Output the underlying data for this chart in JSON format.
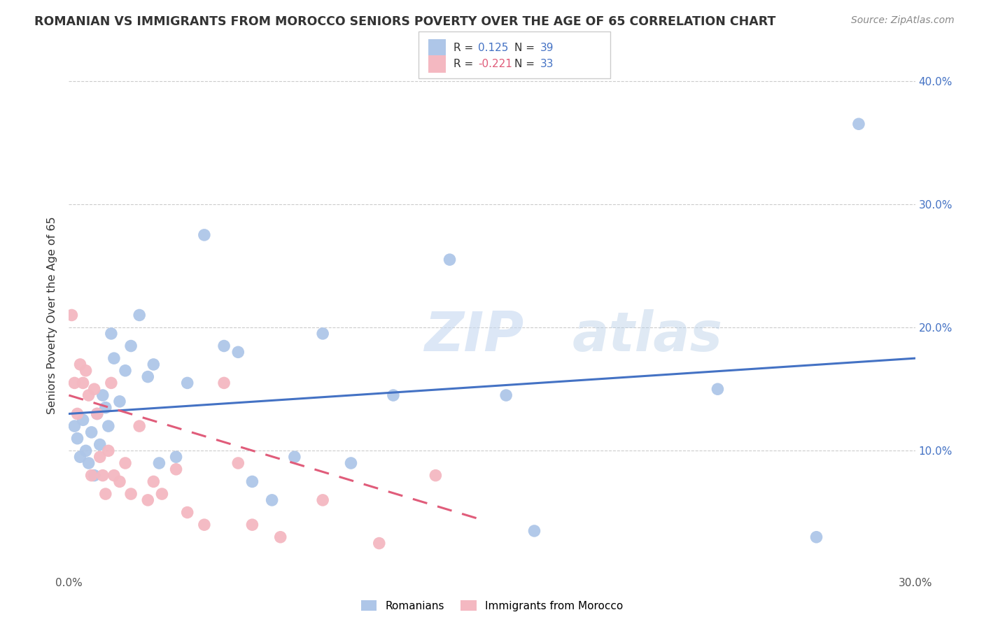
{
  "title": "ROMANIAN VS IMMIGRANTS FROM MOROCCO SENIORS POVERTY OVER THE AGE OF 65 CORRELATION CHART",
  "source": "Source: ZipAtlas.com",
  "ylabel": "Seniors Poverty Over the Age of 65",
  "xlim": [
    0.0,
    0.3
  ],
  "ylim": [
    0.0,
    0.42
  ],
  "xticks": [
    0.0,
    0.05,
    0.1,
    0.15,
    0.2,
    0.25,
    0.3
  ],
  "yticks": [
    0.0,
    0.1,
    0.2,
    0.3,
    0.4
  ],
  "blue_color": "#aec6e8",
  "pink_color": "#f4b8c1",
  "blue_line_color": "#4472c4",
  "pink_line_color": "#e05c7a",
  "watermark_zip": "ZIP",
  "watermark_atlas": "atlas",
  "romanians_x": [
    0.002,
    0.003,
    0.004,
    0.005,
    0.006,
    0.007,
    0.008,
    0.009,
    0.01,
    0.011,
    0.012,
    0.013,
    0.014,
    0.015,
    0.016,
    0.018,
    0.02,
    0.022,
    0.025,
    0.028,
    0.03,
    0.032,
    0.038,
    0.042,
    0.048,
    0.055,
    0.06,
    0.065,
    0.072,
    0.08,
    0.09,
    0.1,
    0.115,
    0.135,
    0.155,
    0.165,
    0.23,
    0.265,
    0.28
  ],
  "romanians_y": [
    0.12,
    0.11,
    0.095,
    0.125,
    0.1,
    0.09,
    0.115,
    0.08,
    0.13,
    0.105,
    0.145,
    0.135,
    0.12,
    0.195,
    0.175,
    0.14,
    0.165,
    0.185,
    0.21,
    0.16,
    0.17,
    0.09,
    0.095,
    0.155,
    0.275,
    0.185,
    0.18,
    0.075,
    0.06,
    0.095,
    0.195,
    0.09,
    0.145,
    0.255,
    0.145,
    0.035,
    0.15,
    0.03,
    0.365
  ],
  "morocco_x": [
    0.001,
    0.002,
    0.003,
    0.004,
    0.005,
    0.006,
    0.007,
    0.008,
    0.009,
    0.01,
    0.011,
    0.012,
    0.013,
    0.014,
    0.015,
    0.016,
    0.018,
    0.02,
    0.022,
    0.025,
    0.028,
    0.03,
    0.033,
    0.038,
    0.042,
    0.048,
    0.055,
    0.06,
    0.065,
    0.075,
    0.09,
    0.11,
    0.13
  ],
  "morocco_y": [
    0.21,
    0.155,
    0.13,
    0.17,
    0.155,
    0.165,
    0.145,
    0.08,
    0.15,
    0.13,
    0.095,
    0.08,
    0.065,
    0.1,
    0.155,
    0.08,
    0.075,
    0.09,
    0.065,
    0.12,
    0.06,
    0.075,
    0.065,
    0.085,
    0.05,
    0.04,
    0.155,
    0.09,
    0.04,
    0.03,
    0.06,
    0.025,
    0.08
  ],
  "blue_trend_x": [
    0.0,
    0.3
  ],
  "blue_trend_y": [
    0.13,
    0.175
  ],
  "pink_trend_x": [
    0.0,
    0.145
  ],
  "pink_trend_y": [
    0.145,
    0.045
  ]
}
